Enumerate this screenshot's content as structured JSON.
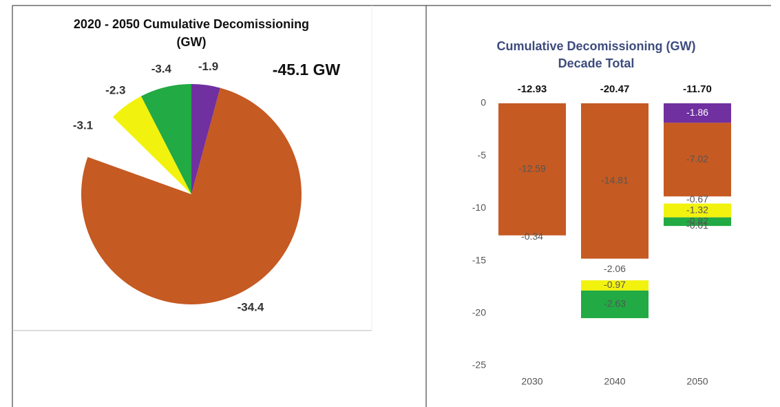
{
  "chart_data": [
    {
      "type": "pie",
      "title": [
        "2020 - 2050 Cumulative Decomissioning",
        "(GW)"
      ],
      "annotation": "-45.1 GW",
      "values": [
        -1.9,
        -34.4,
        -3.1,
        -2.3,
        -3.4
      ],
      "colors": [
        "#7030a0",
        "#c55a22",
        "#ffffff",
        "#f2f20f",
        "#22aa44"
      ]
    },
    {
      "type": "bar",
      "title": [
        "Cumulative Decomissioning (GW)",
        "Decade Total"
      ],
      "categories": [
        "2030",
        "2040",
        "2050"
      ],
      "series": [
        {
          "color": "#7030a0",
          "values": [
            null,
            null,
            -1.86
          ]
        },
        {
          "color": "#c55a22",
          "values": [
            -12.59,
            -14.81,
            -7.02
          ]
        },
        {
          "color": "#ffffff",
          "values": [
            -0.34,
            -2.06,
            -0.67
          ]
        },
        {
          "color": "#f2f20f",
          "values": [
            null,
            -0.97,
            -1.32
          ]
        },
        {
          "color": "#22aa44",
          "values": [
            null,
            -2.63,
            -0.82
          ]
        },
        {
          "color": "#ffffff",
          "values": [
            null,
            null,
            -0.01
          ]
        }
      ],
      "totals": {
        "values": [
          -12.93,
          -20.47,
          -11.7
        ],
        "value_labels": [
          "-12.93",
          "-20.47",
          "-11.70"
        ]
      },
      "ylim": [
        -25,
        0
      ],
      "yticks": [
        0,
        -5,
        -10,
        -15,
        -20,
        -25
      ],
      "grid": false
    }
  ]
}
